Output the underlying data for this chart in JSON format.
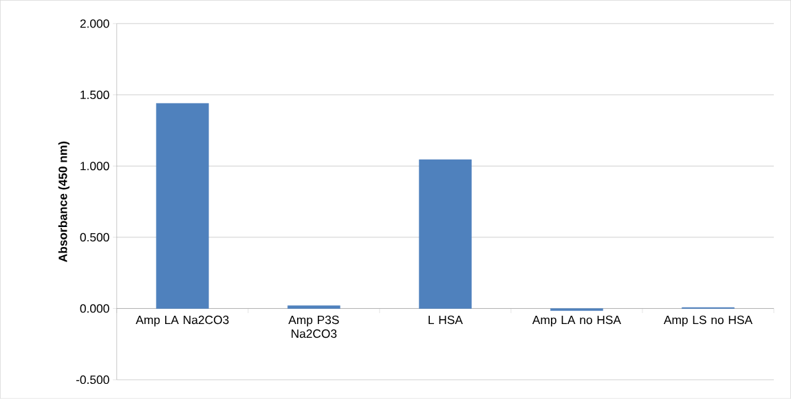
{
  "chart_data": {
    "type": "bar",
    "ylabel": "Absorbance (450 nm)",
    "categories": [
      "Amp LA Na2CO3",
      "Amp P3S Na2CO3",
      "L HSA",
      "Amp LA no HSA",
      "Amp LS no HSA"
    ],
    "values": [
      1.44,
      0.02,
      1.045,
      -0.015,
      0.007
    ],
    "color": "#4f81bd",
    "ylim": [
      -0.5,
      2.0
    ],
    "yticks": [
      {
        "value": -0.5,
        "label": "-0.500"
      },
      {
        "value": 0,
        "label": "0.000"
      },
      {
        "value": 0.5,
        "label": "0.500"
      },
      {
        "value": 1.0,
        "label": "1.000"
      },
      {
        "value": 1.5,
        "label": "1.500"
      },
      {
        "value": 2.0,
        "label": "2.000"
      }
    ],
    "grid": "y"
  }
}
